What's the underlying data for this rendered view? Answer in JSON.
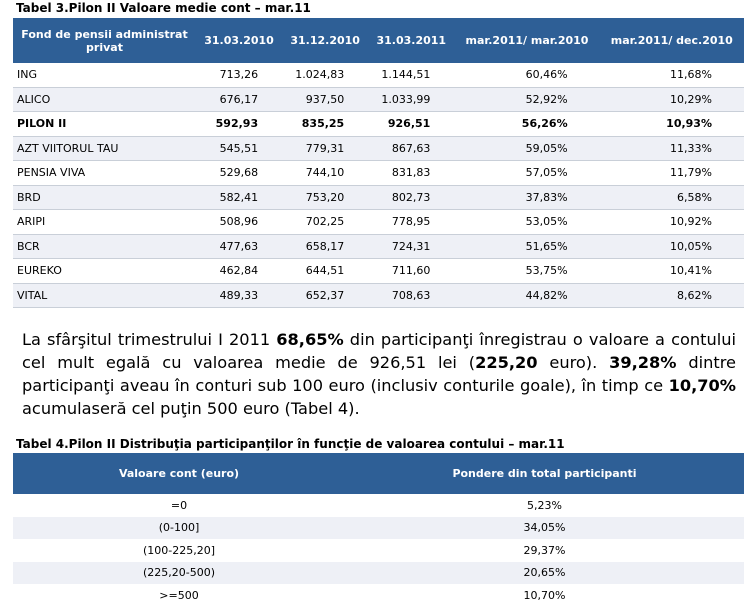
{
  "table3": {
    "title": "Tabel 3.Pilon II Valoare medie cont – mar.11",
    "headers": [
      "Fond de pensii administrat privat",
      "31.03.2010",
      "31.12.2010",
      "31.03.2011",
      "mar.2011/ mar.2010",
      "mar.2011/ dec.2010"
    ],
    "rows": [
      [
        "ING",
        "713,26",
        "1.024,83",
        "1.144,51",
        "60,46%",
        "11,68%"
      ],
      [
        "ALICO",
        "676,17",
        "937,50",
        "1.033,99",
        "52,92%",
        "10,29%"
      ],
      [
        "PILON II",
        "592,93",
        "835,25",
        "926,51",
        "56,26%",
        "10,93%"
      ],
      [
        "AZT VIITORUL TAU",
        "545,51",
        "779,31",
        "867,63",
        "59,05%",
        "11,33%"
      ],
      [
        "PENSIA VIVA",
        "529,68",
        "744,10",
        "831,83",
        "57,05%",
        "11,79%"
      ],
      [
        "BRD",
        "582,41",
        "753,20",
        "802,73",
        "37,83%",
        "6,58%"
      ],
      [
        "ARIPI",
        "508,96",
        "702,25",
        "778,95",
        "53,05%",
        "10,92%"
      ],
      [
        "BCR",
        "477,63",
        "658,17",
        "724,31",
        "51,65%",
        "10,05%"
      ],
      [
        "EUREKO",
        "462,84",
        "644,51",
        "711,60",
        "53,75%",
        "10,41%"
      ],
      [
        "VITAL",
        "489,33",
        "652,37",
        "708,63",
        "44,82%",
        "8,62%"
      ]
    ]
  },
  "paragraph": {
    "p1": "La sfârşitul trimestrului I 2011 ",
    "b1": "68,65%",
    "p2": " din participanţi înregistrau o valoare a contului cel mult egală cu valoarea medie de 926,51 lei (",
    "b2": "225,20",
    "p3": " euro). ",
    "b3": "39,28%",
    "p4": " dintre participanţi aveau în conturi sub 100 euro (inclusiv conturile goale), în timp ce ",
    "b4": "10,70%",
    "p5": " acumulaseră cel puţin 500 euro (Tabel 4)."
  },
  "table4": {
    "title": "Tabel 4.Pilon II Distribuţia participanţilor în funcţie de valoarea contului – mar.11",
    "headers": [
      "Valoare cont (euro)",
      "Pondere din total participanti"
    ],
    "rows": [
      [
        "=0",
        "5,23%"
      ],
      [
        "(0-100]",
        "34,05%"
      ],
      [
        "(100-225,20]",
        "29,37%"
      ],
      [
        "(225,20-500)",
        "20,65%"
      ],
      [
        ">=500",
        "10,70%"
      ]
    ]
  }
}
